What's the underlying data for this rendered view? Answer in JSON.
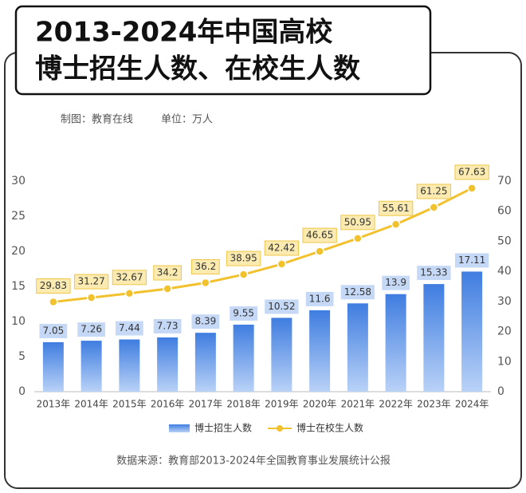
{
  "chart_data": {
    "type": "bar",
    "title": [
      "2013-2024年中国高校",
      "博士招生人数、在校生人数"
    ],
    "maker": "制图：教育在线",
    "unit": "单位：万人",
    "source": "数据来源：教育部2013-2024年全国教育事业发展统计公报",
    "categories": [
      "2013年",
      "2014年",
      "2015年",
      "2016年",
      "2017年",
      "2018年",
      "2019年",
      "2020年",
      "2021年",
      "2022年",
      "2023年",
      "2024年"
    ],
    "series": [
      {
        "name": "博士招生人数",
        "type": "bar",
        "color": "#4a86e8",
        "values": [
          7.05,
          7.26,
          7.44,
          7.73,
          8.39,
          9.55,
          10.52,
          11.6,
          12.58,
          13.9,
          15.33,
          17.11
        ]
      },
      {
        "name": "博士在校生人数",
        "type": "line",
        "axis": "y2",
        "color": "#f2c12e",
        "values": [
          29.83,
          31.27,
          32.67,
          34.2,
          36.2,
          38.95,
          42.42,
          46.65,
          50.95,
          55.61,
          61.25,
          67.63
        ]
      }
    ],
    "ylim": [
      0,
      30
    ],
    "yticks": [
      0,
      5,
      10,
      15,
      20,
      25,
      30
    ],
    "y2lim": [
      0,
      70
    ],
    "y2ticks": [
      0,
      10,
      20,
      30,
      40,
      50,
      60,
      70
    ],
    "legend": "bottom",
    "grid": false
  }
}
